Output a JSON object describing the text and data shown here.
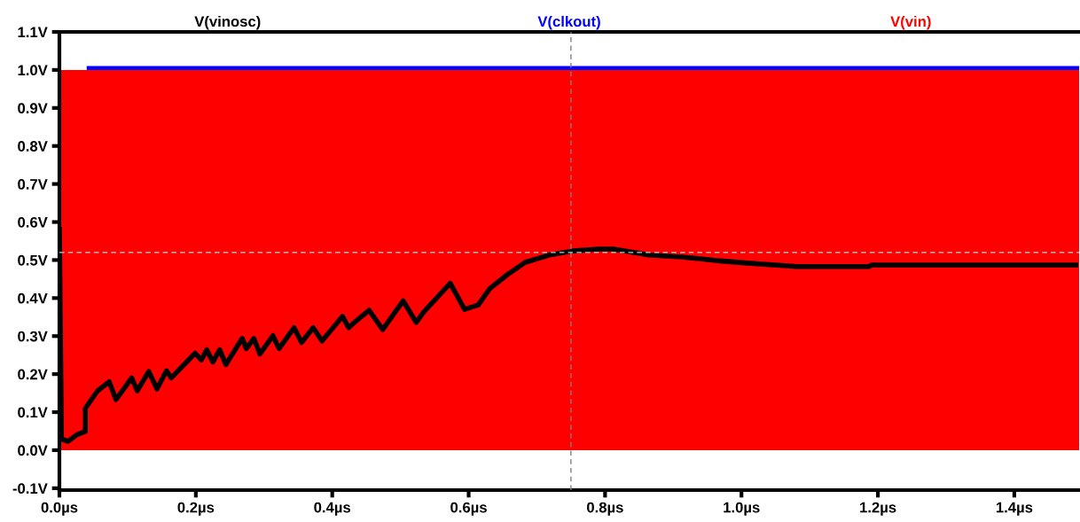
{
  "chart_data": {
    "type": "line",
    "xlim": [
      0,
      1.495
    ],
    "ylim": [
      -0.105,
      1.1
    ],
    "xticks": [
      {
        "value": 0,
        "label": "0.0µs"
      },
      {
        "value": 0.2,
        "label": "0.2µs"
      },
      {
        "value": 0.4,
        "label": "0.4µs"
      },
      {
        "value": 0.6,
        "label": "0.6µs"
      },
      {
        "value": 0.8,
        "label": "0.8µs"
      },
      {
        "value": 1.0,
        "label": "1.0µs"
      },
      {
        "value": 1.2,
        "label": "1.2µs"
      },
      {
        "value": 1.4,
        "label": "1.4µs"
      }
    ],
    "yticks": [
      {
        "value": -0.1,
        "label": "-0.1V"
      },
      {
        "value": 0,
        "label": "0.0V"
      },
      {
        "value": 0.1,
        "label": "0.1V"
      },
      {
        "value": 0.2,
        "label": "0.2V"
      },
      {
        "value": 0.3,
        "label": "0.3V"
      },
      {
        "value": 0.4,
        "label": "0.4V"
      },
      {
        "value": 0.5,
        "label": "0.5V"
      },
      {
        "value": 0.6,
        "label": "0.6V"
      },
      {
        "value": 0.7,
        "label": "0.7V"
      },
      {
        "value": 0.8,
        "label": "0.8V"
      },
      {
        "value": 0.9,
        "label": "0.9V"
      },
      {
        "value": 1.0,
        "label": "1.0V"
      },
      {
        "value": 1.1,
        "label": "1.1V"
      }
    ],
    "grid": false,
    "legend": "top",
    "series": [
      {
        "name": "V(vinosc)",
        "color": "#000000",
        "x": [
          0,
          0.003,
          0.0125,
          0.026,
          0.038,
          0.038,
          0.056,
          0.073,
          0.083,
          0.106,
          0.114,
          0.131,
          0.143,
          0.157,
          0.164,
          0.199,
          0.208,
          0.216,
          0.225,
          0.235,
          0.244,
          0.268,
          0.274,
          0.285,
          0.294,
          0.313,
          0.322,
          0.344,
          0.355,
          0.372,
          0.385,
          0.415,
          0.424,
          0.435,
          0.454,
          0.474,
          0.504,
          0.523,
          0.534,
          0.573,
          0.594,
          0.614,
          0.631,
          0.657,
          0.683,
          0.718,
          0.753,
          0.792,
          0.812,
          0.865,
          0.913,
          0.961,
          1.009,
          1.081,
          1.187,
          1.191,
          1.49
        ],
        "values": [
          0.58,
          0.03,
          0.023,
          0.041,
          0.049,
          0.11,
          0.156,
          0.18,
          0.133,
          0.19,
          0.156,
          0.207,
          0.161,
          0.209,
          0.19,
          0.255,
          0.237,
          0.264,
          0.232,
          0.264,
          0.225,
          0.294,
          0.267,
          0.294,
          0.253,
          0.301,
          0.267,
          0.322,
          0.283,
          0.322,
          0.287,
          0.352,
          0.322,
          0.34,
          0.368,
          0.317,
          0.393,
          0.336,
          0.363,
          0.439,
          0.37,
          0.382,
          0.425,
          0.462,
          0.494,
          0.513,
          0.524,
          0.529,
          0.529,
          0.513,
          0.508,
          0.499,
          0.492,
          0.483,
          0.483,
          0.487,
          0.487
        ]
      },
      {
        "name": "V(clkout)",
        "type": "area",
        "color": "#0000ff",
        "x": [
          0.04,
          1.495
        ],
        "values": [
          1.01,
          1.01
        ]
      },
      {
        "name": "V(vin)",
        "type": "area",
        "color": "#ff0000",
        "x": [
          0,
          1.495
        ],
        "values": [
          1.0,
          1.0
        ]
      }
    ],
    "ref_lines": [
      {
        "axis": "x",
        "value": 0.75,
        "color": "#808080",
        "line_style": "dashed"
      },
      {
        "axis": "y",
        "value": 0.52,
        "color": "#a8d8d8",
        "line_style": "dashed"
      }
    ]
  }
}
